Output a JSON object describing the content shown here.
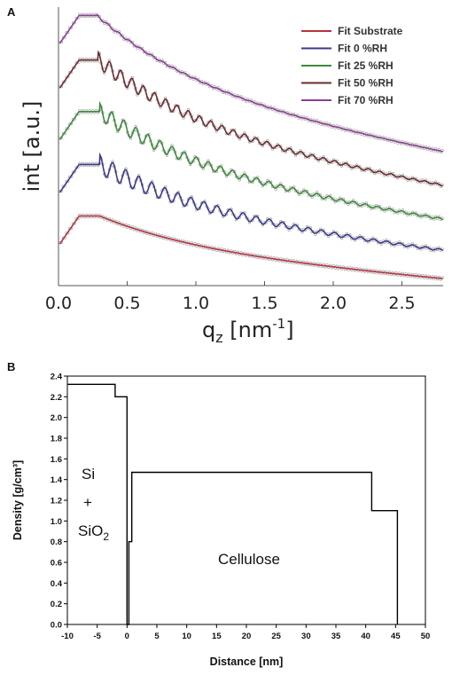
{
  "chart_data": [
    {
      "panel": "A",
      "type": "line",
      "xlabel_main": "q",
      "xlabel_sub": "z",
      "xlabel_unit_pre": " [nm",
      "xlabel_unit_sup": "-1",
      "xlabel_unit_post": "]",
      "ylabel": "int [a.u.]",
      "xlim": [
        0.0,
        2.8
      ],
      "xticks": [
        "0.0",
        "0.5",
        "1.0",
        "1.5",
        "2.0",
        "2.5"
      ],
      "legend_position": "top-right",
      "series": [
        {
          "name": "Fit Substrate",
          "color": "#b5333f",
          "plateau_end": 0.3,
          "end_level": 0.02,
          "fringe_amp": 0.0,
          "fringe_period": 0.1
        },
        {
          "name": "Fit 0 %RH",
          "color": "#3b3a8c",
          "plateau_end": 0.3,
          "end_level": 0.12,
          "fringe_amp": 0.035,
          "fringe_period": 0.095
        },
        {
          "name": "Fit 25 %RH",
          "color": "#3d8a3c",
          "plateau_end": 0.3,
          "end_level": 0.23,
          "fringe_amp": 0.03,
          "fringe_period": 0.088
        },
        {
          "name": "Fit 50 %RH",
          "color": "#6b2b2f",
          "plateau_end": 0.29,
          "end_level": 0.35,
          "fringe_amp": 0.028,
          "fringe_period": 0.082
        },
        {
          "name": "Fit 70 %RH",
          "color": "#8a3f94",
          "plateau_end": 0.28,
          "end_level": 0.47,
          "fringe_amp": 0.004,
          "fringe_period": 0.08
        }
      ]
    },
    {
      "panel": "B",
      "type": "line",
      "xlabel": "Distance [nm]",
      "ylabel": "Density [g/cm³]",
      "xlim": [
        -10,
        50
      ],
      "ylim": [
        0.0,
        2.4
      ],
      "xticks": [
        "-10",
        "-5",
        "0",
        "5",
        "10",
        "15",
        "20",
        "25",
        "30",
        "35",
        "40",
        "45",
        "50"
      ],
      "yticks": [
        "0.0",
        "0.2",
        "0.4",
        "0.6",
        "0.8",
        "1.0",
        "1.2",
        "1.4",
        "1.6",
        "1.8",
        "2.0",
        "2.2",
        "2.4"
      ],
      "line_color": "#000000",
      "profile": {
        "x": [
          -10,
          -2.0,
          -2.0,
          -0.5,
          -0.5,
          0.0,
          0.0,
          0.3,
          0.3,
          0.8,
          0.8,
          41.0,
          41.0,
          45.3,
          45.3
        ],
        "y": [
          2.32,
          2.32,
          2.2,
          2.2,
          2.2,
          2.2,
          0.0,
          0.0,
          0.8,
          0.8,
          1.47,
          1.47,
          1.1,
          1.1,
          0.0
        ]
      },
      "annotations": {
        "si": "Si",
        "plus": "+",
        "sio_pre": "SiO",
        "sio_sub": "2",
        "cellulose": "Cellulose"
      }
    }
  ]
}
